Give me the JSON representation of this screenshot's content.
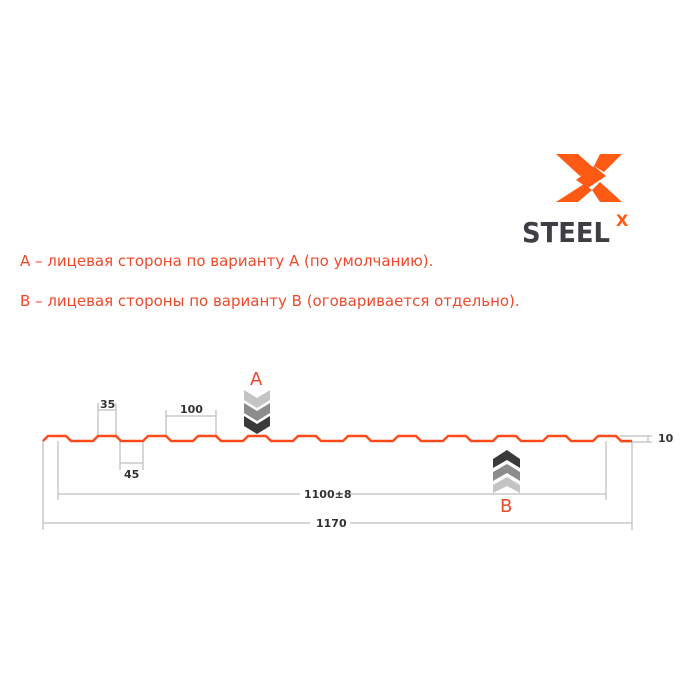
{
  "logo": {
    "text": "STEEL",
    "superscript": "X",
    "brand_color": "#ff5a14",
    "text_color": "#3d3f44"
  },
  "notes": [
    "A – лицевая сторона по варианту А (по умолчанию).",
    "B – лицевая стороны по варианту B (оговаривается отдельно)."
  ],
  "diagram": {
    "profile_color": "#ff4a1c",
    "dimensions": {
      "crest": "35",
      "pitch": "100",
      "trough": "45",
      "height": "10",
      "useful_width": "1100±8",
      "total_width": "1170"
    },
    "side_a": {
      "label": "A",
      "arrow_direction": "down"
    },
    "side_b": {
      "label": "B",
      "arrow_direction": "up"
    }
  }
}
